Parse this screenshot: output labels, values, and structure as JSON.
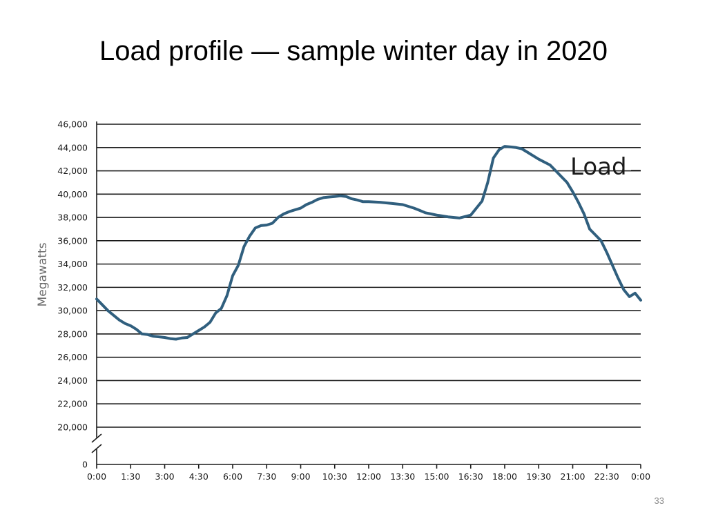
{
  "slide": {
    "title": "Load profile — sample winter day in 2020",
    "page_number": "33"
  },
  "colors": {
    "line": "#305f7e",
    "grid": "#1a1a1a",
    "axis": "#1a1a1a",
    "text": "#1a1a1a",
    "ylabel": "#6d6d6d"
  },
  "chart_data": {
    "type": "line",
    "title": "",
    "xlabel": "",
    "ylabel": "Megawatts",
    "grid": true,
    "axis_break": "y-axis break between 0 and 20,000",
    "y_ticks": [
      0,
      20000,
      22000,
      24000,
      26000,
      28000,
      30000,
      32000,
      34000,
      36000,
      38000,
      40000,
      42000,
      44000,
      46000
    ],
    "y_tick_labels": [
      "0",
      "20,000",
      "22,000",
      "24,000",
      "26,000",
      "28,000",
      "30,000",
      "32,000",
      "34,000",
      "36,000",
      "38,000",
      "40,000",
      "42,000",
      "44,000",
      "46,000"
    ],
    "x_ticks": [
      "0:00",
      "1:30",
      "3:00",
      "4:30",
      "6:00",
      "7:30",
      "9:00",
      "10:30",
      "12:00",
      "13:30",
      "15:00",
      "16:30",
      "18:00",
      "19:30",
      "21:00",
      "22:30",
      "0:00"
    ],
    "series": [
      {
        "name": "Load",
        "x_hours": [
          0,
          0.25,
          0.5,
          0.75,
          1.0,
          1.25,
          1.5,
          1.75,
          2.0,
          2.25,
          2.5,
          2.75,
          3.0,
          3.25,
          3.5,
          3.75,
          4.0,
          4.25,
          4.5,
          4.75,
          5.0,
          5.25,
          5.5,
          5.75,
          6.0,
          6.25,
          6.5,
          6.75,
          7.0,
          7.25,
          7.5,
          7.75,
          8.0,
          8.25,
          8.5,
          8.75,
          9.0,
          9.25,
          9.5,
          9.75,
          10.0,
          10.25,
          10.5,
          10.75,
          11.0,
          11.25,
          11.5,
          11.75,
          12.0,
          12.5,
          13.0,
          13.5,
          14.0,
          14.25,
          14.5,
          14.75,
          15.0,
          15.5,
          16.0,
          16.5,
          17.0,
          17.25,
          17.5,
          17.75,
          18.0,
          18.25,
          18.5,
          18.75,
          19.0,
          19.5,
          20.0,
          20.25,
          20.5,
          20.75,
          21.0,
          21.25,
          21.5,
          21.75,
          22.0,
          22.25,
          22.5,
          22.75,
          23.0,
          23.25,
          23.5,
          23.75,
          24.0
        ],
        "values": [
          31000,
          30500,
          30000,
          29600,
          29200,
          28900,
          28700,
          28400,
          28000,
          27950,
          27800,
          27750,
          27700,
          27600,
          27550,
          27650,
          27700,
          28000,
          28300,
          28600,
          29000,
          29800,
          30200,
          31300,
          33000,
          33900,
          35500,
          36400,
          37100,
          37300,
          37350,
          37500,
          38000,
          38300,
          38500,
          38650,
          38800,
          39100,
          39300,
          39550,
          39700,
          39750,
          39800,
          39850,
          39800,
          39600,
          39500,
          39350,
          39350,
          39300,
          39200,
          39100,
          38800,
          38600,
          38400,
          38300,
          38200,
          38050,
          37950,
          38200,
          39400,
          41000,
          43100,
          43800,
          44100,
          44050,
          44000,
          43900,
          43600,
          43000,
          42500,
          42000,
          41500,
          41000,
          40200,
          39300,
          38300,
          37000,
          36500,
          36000,
          35000,
          33900,
          32800,
          31800,
          31200,
          31500,
          30900
        ]
      }
    ]
  }
}
